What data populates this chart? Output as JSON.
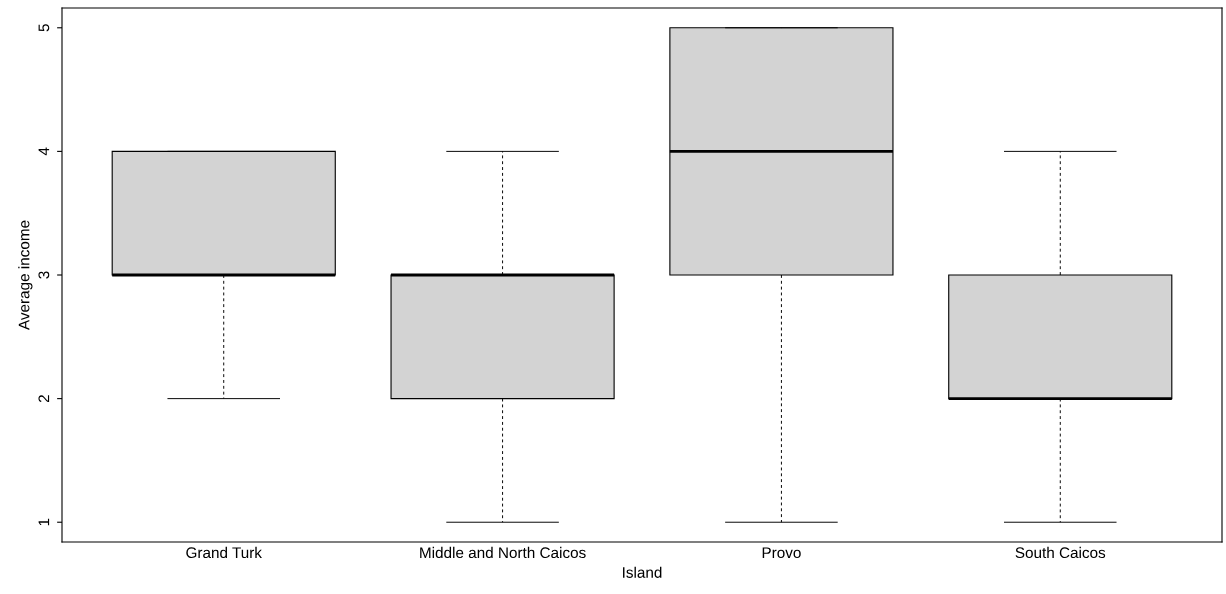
{
  "chart_data": {
    "type": "box",
    "xlabel": "Island",
    "ylabel": "Average income",
    "categories": [
      "Grand Turk",
      "Middle and North Caicos",
      "Provo",
      "South Caicos"
    ],
    "boxes": [
      {
        "low": 2,
        "q1": 3,
        "median": 3,
        "q3": 4,
        "high": 4
      },
      {
        "low": 1,
        "q1": 2,
        "median": 3,
        "q3": 3,
        "high": 4
      },
      {
        "low": 1,
        "q1": 3,
        "median": 4,
        "q3": 5,
        "high": 5
      },
      {
        "low": 1,
        "q1": 2,
        "median": 2,
        "q3": 3,
        "high": 4
      }
    ],
    "color": "#d3d3d3",
    "ylim": [
      0.84,
      5.16
    ],
    "yticks": [
      1,
      2,
      3,
      4,
      5
    ],
    "grid": false,
    "legend": false
  }
}
